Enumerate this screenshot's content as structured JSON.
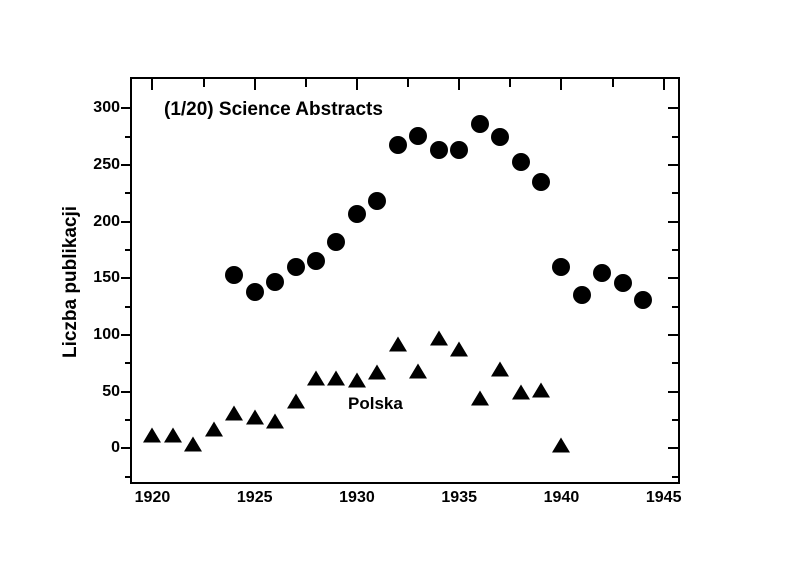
{
  "figure": {
    "background": "#ffffff",
    "foreground": "#000000"
  },
  "chart_data": {
    "type": "scatter",
    "title": "",
    "xlabel": "",
    "ylabel": "Liczba publikacji",
    "grid": false,
    "legend_position": "labels-inside-plot",
    "xlim": [
      1919.0,
      1945.7
    ],
    "ylim": [
      -29.8,
      325.9
    ],
    "x_major_ticks": [
      1920,
      1925,
      1930,
      1935,
      1940,
      1945
    ],
    "x_minor_ticks": [
      1922.5,
      1927.5,
      1932.5,
      1937.5,
      1942.5
    ],
    "y_major_ticks": [
      0,
      50,
      100,
      150,
      200,
      250,
      300
    ],
    "y_minor_ticks": [
      -25,
      25,
      75,
      125,
      175,
      225,
      275
    ],
    "series": [
      {
        "name": "(1/20) Science Abstracts",
        "marker": "circle",
        "color": "#000000",
        "x": [
          1924,
          1925,
          1926,
          1927,
          1928,
          1929,
          1930,
          1931,
          1932,
          1933,
          1934,
          1935,
          1936,
          1937,
          1938,
          1939,
          1940,
          1941,
          1942,
          1943,
          1944
        ],
        "y": [
          153,
          138,
          147,
          160,
          165,
          182,
          207,
          218,
          268,
          276,
          263,
          263,
          286,
          275,
          253,
          235,
          160,
          135,
          155,
          146,
          131
        ]
      },
      {
        "name": "Polska",
        "marker": "triangle-up",
        "color": "#000000",
        "x": [
          1920,
          1921,
          1922,
          1923,
          1924,
          1925,
          1926,
          1927,
          1928,
          1929,
          1930,
          1931,
          1932,
          1933,
          1934,
          1935,
          1936,
          1937,
          1938,
          1939,
          1940
        ],
        "y": [
          12,
          12,
          4,
          17,
          31,
          28,
          24,
          42,
          62,
          62,
          60,
          67,
          92,
          68,
          97,
          88,
          44,
          70,
          50,
          51,
          3
        ]
      }
    ]
  }
}
